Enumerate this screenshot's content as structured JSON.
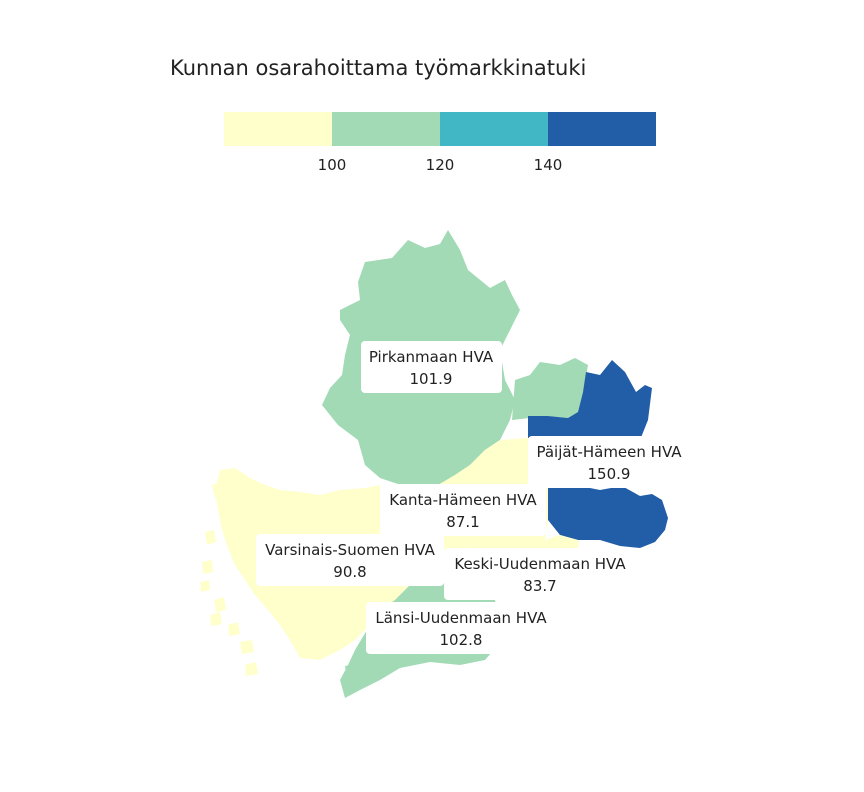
{
  "title": "Kunnan osarahoittama työmarkkinatuki",
  "legend": {
    "bins": [
      {
        "color": "#ffffcc"
      },
      {
        "color": "#a1dab4"
      },
      {
        "color": "#41b6c4"
      },
      {
        "color": "#225ea8"
      }
    ],
    "ticks": [
      "100",
      "120",
      "140"
    ]
  },
  "regions": [
    {
      "id": "pirkanmaa",
      "name": "Pirkanmaan HVA",
      "value": "101.9",
      "color": "#a1dab4"
    },
    {
      "id": "paijat-hame",
      "name": "Päijät-Hämeen HVA",
      "value": "150.9",
      "color": "#225ea8"
    },
    {
      "id": "kanta-hame",
      "name": "Kanta-Hämeen HVA",
      "value": "87.1",
      "color": "#ffffcc"
    },
    {
      "id": "varsinais-suomi",
      "name": "Varsinais-Suomen HVA",
      "value": "90.8",
      "color": "#ffffcc"
    },
    {
      "id": "keski-uusimaa",
      "name": "Keski-Uudenmaan HVA",
      "value": "83.7",
      "color": "#ffffcc"
    },
    {
      "id": "lansi-uusimaa",
      "name": "Länsi-Uudenmaan HVA",
      "value": "102.8",
      "color": "#a1dab4"
    }
  ]
}
